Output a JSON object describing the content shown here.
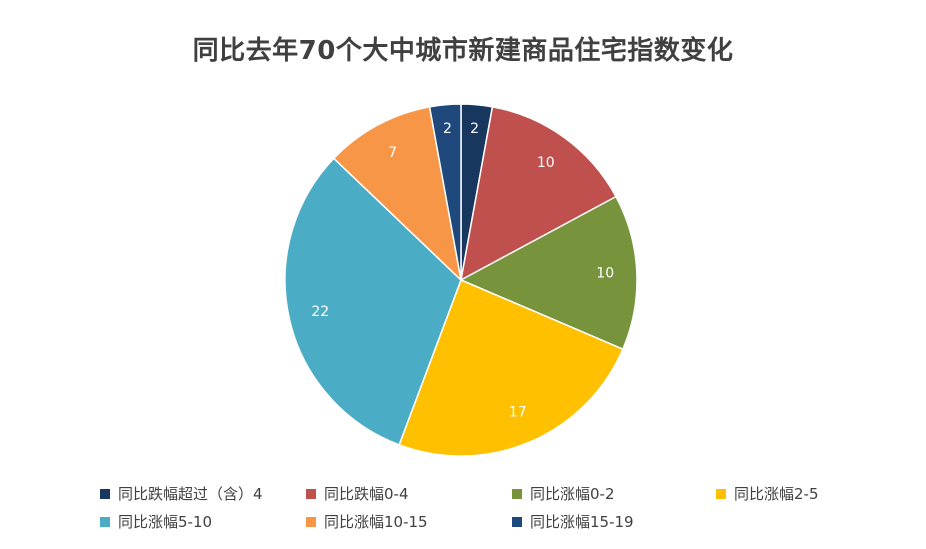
{
  "chart_data": {
    "type": "pie",
    "title": "同比去年70个大中城市新建商品住宅指数变化",
    "categories": [
      "同比跌幅超过（含）4",
      "同比跌幅0-4",
      "同比涨幅0-2",
      "同比涨幅2-5",
      "同比涨幅5-10",
      "同比涨幅10-15",
      "同比涨幅15-19"
    ],
    "values": [
      2,
      10,
      10,
      17,
      22,
      7,
      2
    ],
    "colors": [
      "#17375E",
      "#C0504D",
      "#77933C",
      "#FFC000",
      "#4BACC6",
      "#F79646",
      "#1F497D"
    ],
    "legend_position": "bottom"
  }
}
